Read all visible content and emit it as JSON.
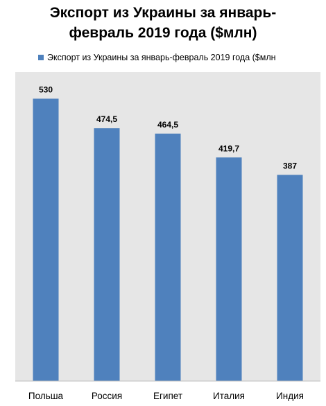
{
  "chart_data": {
    "type": "bar",
    "title_lines": [
      "Экспорт из Украины за январь-",
      "февраль 2019 года ($млн)"
    ],
    "legend_label": "Экспорт из Украины за январь-февраль 2019 года ($млн",
    "legend_position": "top",
    "categories": [
      "Польша",
      "Россия",
      "Египет",
      "Италия",
      "Индия"
    ],
    "values": [
      530,
      474.5,
      464.5,
      419.7,
      387
    ],
    "value_labels": [
      "530",
      "474,5",
      "464,5",
      "419,7",
      "387"
    ],
    "ylim": [
      0,
      580
    ],
    "grid": false,
    "colors": {
      "bar": "#4F81BD",
      "plot_background": "#E6E6E6"
    }
  }
}
